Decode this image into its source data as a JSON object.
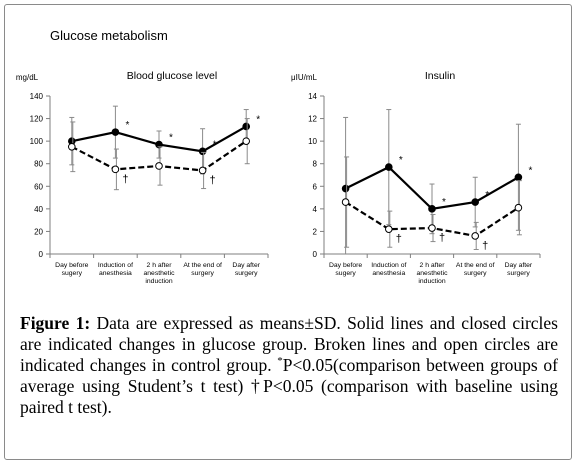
{
  "figure_title": "Glucose metabolism",
  "caption": {
    "label": "Figure 1:",
    "text_before_sup": " Data are expressed as means±SD. Solid lines and closed circles are indicated changes in glucose group. Broken lines and open circles are indicated changes in control group. ",
    "sup": "*",
    "text_after_sup": "P<0.05(comparison between groups of average using Student’s t test) †P<0.05 (comparison with baseline using paired t test)."
  },
  "chart_data": [
    {
      "type": "line",
      "title": "Blood glucose level",
      "ylabel": "mg/dL",
      "xlabel": "",
      "ylim": [
        0,
        140
      ],
      "yticks": [
        0,
        20,
        40,
        60,
        80,
        100,
        120,
        140
      ],
      "grid": false,
      "categories": [
        [
          "Day before",
          "sugery"
        ],
        [
          "Induction of",
          "anesthesia"
        ],
        [
          "2 h after",
          "anesthetic",
          "induction"
        ],
        [
          "At the end of",
          "surgery"
        ],
        [
          "Day after",
          "surgery"
        ]
      ],
      "series": [
        {
          "style": "solid",
          "marker": "filled",
          "values": [
            100,
            108,
            97,
            91,
            113
          ],
          "errors": [
            21,
            23,
            12,
            20,
            15
          ],
          "annotations": [
            "",
            "*",
            "*",
            "*",
            "*"
          ]
        },
        {
          "style": "dashed",
          "marker": "open",
          "values": [
            95,
            75,
            78,
            74,
            100
          ],
          "errors": [
            22,
            18,
            17,
            16,
            20
          ],
          "annotations": [
            "",
            "†",
            "",
            "†",
            ""
          ]
        }
      ]
    },
    {
      "type": "line",
      "title": "Insulin",
      "ylabel": "μIU/mL",
      "xlabel": "",
      "ylim": [
        0,
        14
      ],
      "yticks": [
        0,
        2,
        4,
        6,
        8,
        10,
        12,
        14
      ],
      "grid": false,
      "categories": [
        [
          "Day before",
          "sugery"
        ],
        [
          "Induction of",
          "anesthesia"
        ],
        [
          "2 h after",
          "anesthetic",
          "induction"
        ],
        [
          "At the end of",
          "surgery"
        ],
        [
          "Day after",
          "surgery"
        ]
      ],
      "series": [
        {
          "style": "solid",
          "marker": "filled",
          "values": [
            5.8,
            7.7,
            4.0,
            4.6,
            6.8
          ],
          "errors": [
            6.3,
            5.1,
            2.2,
            2.2,
            4.7
          ],
          "annotations": [
            "",
            "*",
            "*",
            "*",
            "*"
          ]
        },
        {
          "style": "dashed",
          "marker": "open",
          "values": [
            4.6,
            2.2,
            2.3,
            1.6,
            4.1
          ],
          "errors": [
            4.0,
            1.6,
            1.2,
            1.2,
            2.4
          ],
          "annotations": [
            "",
            "†",
            "†",
            "†",
            ""
          ]
        }
      ]
    }
  ]
}
